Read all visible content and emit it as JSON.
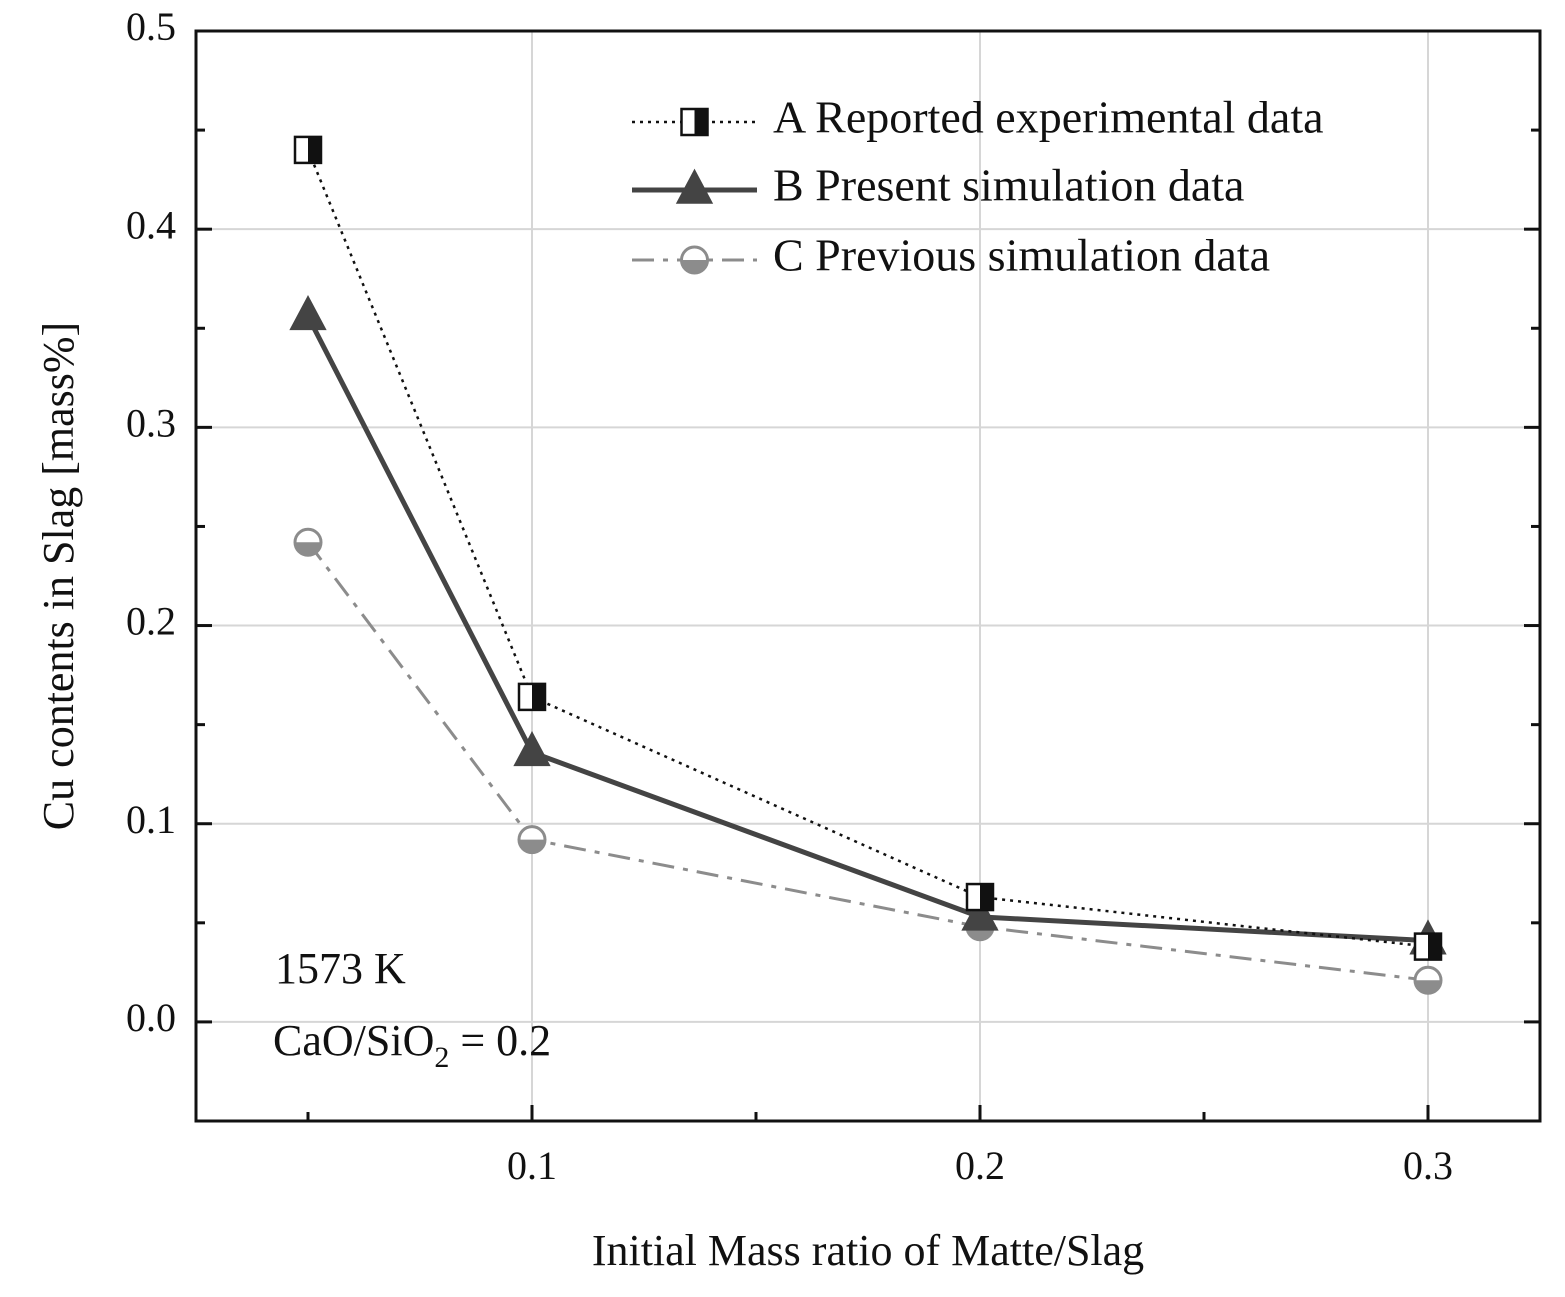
{
  "chart_data": {
    "type": "line",
    "title": "",
    "xlabel": "Initial Mass ratio of Matte/Slag",
    "ylabel": "Cu contents in Slag [mass%]",
    "xlim": [
      0.025,
      0.325
    ],
    "ylim": [
      -0.05,
      0.5
    ],
    "x_ticks": [
      0.1,
      0.2,
      0.3
    ],
    "x_tick_labels": [
      "0.1",
      "0.2",
      "0.3"
    ],
    "y_ticks": [
      0.0,
      0.1,
      0.2,
      0.3,
      0.4,
      0.5
    ],
    "y_tick_labels": [
      "0.0",
      "0.1",
      "0.2",
      "0.3",
      "0.4",
      "0.5"
    ],
    "grid": true,
    "legend_position": "top-right",
    "x": [
      0.05,
      0.1,
      0.2,
      0.3
    ],
    "series": [
      {
        "name": "A Reported experimental data",
        "values": [
          0.44,
          0.164,
          0.063,
          0.038
        ],
        "marker": "half-filled-square",
        "line_style": "dotted",
        "color": "#111111"
      },
      {
        "name": "B Present simulation data",
        "values": [
          0.356,
          0.136,
          0.053,
          0.041
        ],
        "marker": "filled-triangle",
        "line_style": "solid",
        "color": "#444444"
      },
      {
        "name": "C Previous simulation data",
        "values": [
          0.242,
          0.092,
          0.048,
          0.021
        ],
        "marker": "half-filled-circle",
        "line_style": "dash-dot",
        "color": "#8c8c8c"
      }
    ],
    "annotations": {
      "temperature": "1573 K",
      "ratio_prefix": "CaO/SiO",
      "ratio_subscript": "2",
      "ratio_suffix": " = 0.2"
    }
  }
}
